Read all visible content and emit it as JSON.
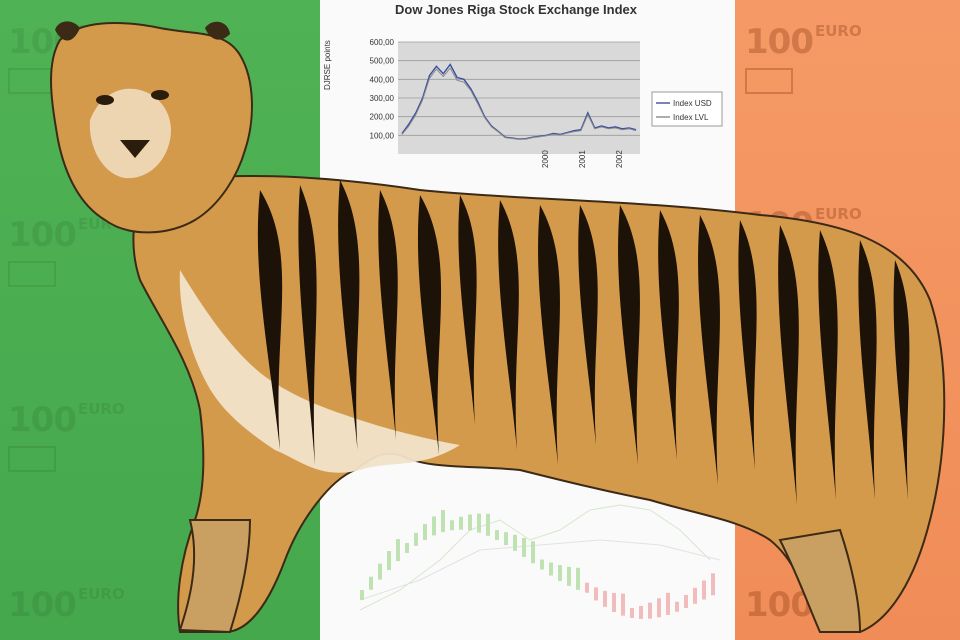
{
  "flag_colors": {
    "green": "#4fb254",
    "white": "#fafafa",
    "orange": "#f59a66"
  },
  "banknote": {
    "amount": "100",
    "currency": "EURO"
  },
  "chart_data": {
    "type": "line",
    "title": "Dow Jones Riga Stock Exchange Index",
    "ylabel": "DJRSE points",
    "y_ticks": [
      "600,00",
      "500,00",
      "400,00",
      "300,00",
      "200,00",
      "100,00"
    ],
    "ylim": [
      0,
      600
    ],
    "x_ticks": [
      "2000",
      "2001",
      "2002"
    ],
    "series": [
      {
        "name": "Index USD",
        "values": [
          110,
          160,
          220,
          300,
          420,
          470,
          430,
          480,
          410,
          400,
          350,
          280,
          200,
          150,
          120,
          90,
          85,
          80,
          82,
          90,
          95,
          100,
          110,
          105,
          115,
          125,
          130,
          220,
          140,
          150,
          140,
          145,
          135,
          140,
          130
        ]
      },
      {
        "name": "Index LVL",
        "values": [
          105,
          150,
          210,
          290,
          405,
          455,
          415,
          460,
          395,
          385,
          340,
          270,
          195,
          145,
          118,
          88,
          83,
          78,
          80,
          88,
          92,
          98,
          106,
          102,
          112,
          120,
          125,
          210,
          135,
          145,
          135,
          140,
          130,
          135,
          125
        ]
      }
    ],
    "legend": "right",
    "grid": true
  },
  "subject": "tiger"
}
